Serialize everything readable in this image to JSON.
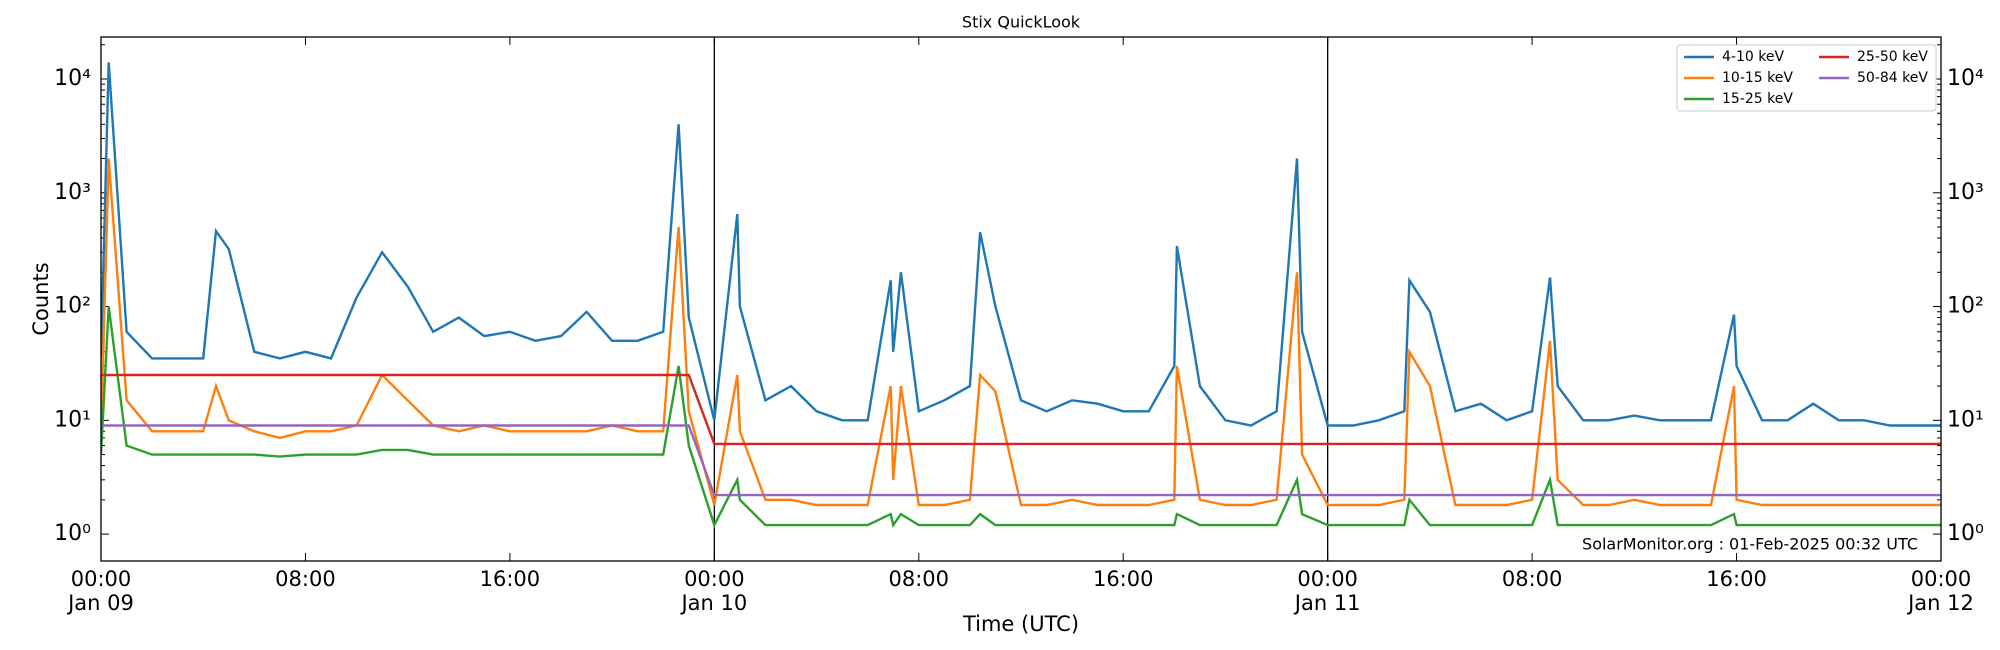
{
  "chart_data": {
    "type": "line",
    "title": "Stix QuickLook",
    "xlabel": "Time (UTC)",
    "ylabel": "Counts",
    "footnote": "SolarMonitor.org : 01-Feb-2025 00:32 UTC",
    "log_y": true,
    "day_separators": true,
    "legend_loc": "upper right",
    "xlim": [
      0,
      72
    ],
    "xticks": [
      {
        "value": 0,
        "label": "00:00\nJan 09"
      },
      {
        "value": 8,
        "label": "08:00"
      },
      {
        "value": 16,
        "label": "16:00"
      },
      {
        "value": 24,
        "label": "00:00\nJan 10"
      },
      {
        "value": 32,
        "label": "08:00"
      },
      {
        "value": 40,
        "label": "16:00"
      },
      {
        "value": 48,
        "label": "00:00\nJan 11"
      },
      {
        "value": 56,
        "label": "08:00"
      },
      {
        "value": 64,
        "label": "16:00"
      },
      {
        "value": 72,
        "label": "00:00\nJan 12"
      }
    ],
    "ylim": [
      0.58,
      23400
    ],
    "yticks": [
      {
        "value": 1,
        "label": "10⁰"
      },
      {
        "value": 10,
        "label": "10¹"
      },
      {
        "value": 100,
        "label": "10²"
      },
      {
        "value": 1000,
        "label": "10³"
      },
      {
        "value": 10000,
        "label": "10⁴"
      }
    ],
    "x": [
      0,
      0.3,
      1,
      2,
      3,
      4,
      4.5,
      5,
      6,
      7,
      8,
      9,
      10,
      11,
      12,
      13,
      14,
      15,
      16,
      17,
      18,
      19,
      20,
      21,
      22,
      22.6,
      23,
      24,
      24.9,
      25,
      26,
      27,
      28,
      29,
      30,
      30.9,
      31,
      31.3,
      32,
      33,
      34,
      34.4,
      35,
      36,
      37,
      38,
      39,
      40,
      41,
      42,
      42.1,
      43,
      44,
      45,
      46,
      46.8,
      47,
      48,
      49,
      50,
      51,
      51.2,
      52,
      53,
      54,
      55,
      56,
      56.7,
      57,
      58,
      59,
      60,
      61,
      62,
      63,
      63.9,
      64,
      65,
      66,
      67,
      68,
      69,
      70,
      71,
      72
    ],
    "series": [
      {
        "name": "4-10 keV",
        "color": "#1f77b4",
        "values": [
          35,
          14000,
          60,
          35,
          35,
          35,
          460,
          320,
          40,
          35,
          40,
          35,
          120,
          300,
          150,
          60,
          80,
          55,
          60,
          50,
          55,
          90,
          50,
          50,
          60,
          4000,
          80,
          10,
          650,
          100,
          15,
          20,
          12,
          10,
          10,
          170,
          40,
          200,
          12,
          15,
          20,
          450,
          100,
          15,
          12,
          15,
          14,
          12,
          12,
          30,
          340,
          20,
          10,
          9,
          12,
          2000,
          60,
          9,
          9,
          10,
          12,
          170,
          90,
          12,
          14,
          10,
          12,
          180,
          20,
          10,
          10,
          11,
          10,
          10,
          10,
          85,
          30,
          10,
          10,
          14,
          10,
          10,
          9,
          9,
          9
        ]
      },
      {
        "name": "10-15 keV",
        "color": "#ff7f0e",
        "values": [
          8,
          2000,
          15,
          8,
          8,
          8,
          20,
          10,
          8,
          7,
          8,
          8,
          9,
          25,
          15,
          9,
          8,
          9,
          8,
          8,
          8,
          8,
          9,
          8,
          8,
          500,
          12,
          1.8,
          25,
          8,
          2,
          2,
          1.8,
          1.8,
          1.8,
          20,
          3,
          20,
          1.8,
          1.8,
          2,
          25,
          18,
          1.8,
          1.8,
          2,
          1.8,
          1.8,
          1.8,
          2,
          30,
          2,
          1.8,
          1.8,
          2,
          200,
          5,
          1.8,
          1.8,
          1.8,
          2,
          40,
          20,
          1.8,
          1.8,
          1.8,
          2,
          50,
          3,
          1.8,
          1.8,
          2,
          1.8,
          1.8,
          1.8,
          20,
          2,
          1.8,
          1.8,
          1.8,
          1.8,
          1.8,
          1.8,
          1.8,
          1.8
        ]
      },
      {
        "name": "15-25 keV",
        "color": "#2ca02c",
        "values": [
          5,
          100,
          6,
          5,
          5,
          5,
          5,
          5,
          5,
          4.8,
          5,
          5,
          5,
          5.5,
          5.5,
          5,
          5,
          5,
          5,
          5,
          5,
          5,
          5,
          5,
          5,
          30,
          6,
          1.2,
          3,
          2,
          1.2,
          1.2,
          1.2,
          1.2,
          1.2,
          1.5,
          1.2,
          1.5,
          1.2,
          1.2,
          1.2,
          1.5,
          1.2,
          1.2,
          1.2,
          1.2,
          1.2,
          1.2,
          1.2,
          1.2,
          1.5,
          1.2,
          1.2,
          1.2,
          1.2,
          3,
          1.5,
          1.2,
          1.2,
          1.2,
          1.2,
          2,
          1.2,
          1.2,
          1.2,
          1.2,
          1.2,
          3,
          1.2,
          1.2,
          1.2,
          1.2,
          1.2,
          1.2,
          1.2,
          1.5,
          1.2,
          1.2,
          1.2,
          1.2,
          1.2,
          1.2,
          1.2,
          1.2,
          1.2
        ]
      },
      {
        "name": "25-50 keV",
        "color": "#d62728",
        "values": [
          25,
          25,
          25,
          25,
          25,
          25,
          25,
          25,
          25,
          25,
          25,
          25,
          25,
          25,
          25,
          25,
          25,
          25,
          25,
          25,
          25,
          25,
          25,
          25,
          25,
          25,
          25,
          6.2,
          6.2,
          6.2,
          6.2,
          6.2,
          6.2,
          6.2,
          6.2,
          6.2,
          6.2,
          6.2,
          6.2,
          6.2,
          6.2,
          6.2,
          6.2,
          6.2,
          6.2,
          6.2,
          6.2,
          6.2,
          6.2,
          6.2,
          6.2,
          6.2,
          6.2,
          6.2,
          6.2,
          6.2,
          6.2,
          6.2,
          6.2,
          6.2,
          6.2,
          6.2,
          6.2,
          6.2,
          6.2,
          6.2,
          6.2,
          6.2,
          6.2,
          6.2,
          6.2,
          6.2,
          6.2,
          6.2,
          6.2,
          6.2,
          6.2,
          6.2,
          6.2,
          6.2,
          6.2,
          6.2,
          6.2,
          6.2,
          6.2
        ]
      },
      {
        "name": "50-84 keV",
        "color": "#9467bd",
        "values": [
          9,
          9,
          9,
          9,
          9,
          9,
          9,
          9,
          9,
          9,
          9,
          9,
          9,
          9,
          9,
          9,
          9,
          9,
          9,
          9,
          9,
          9,
          9,
          9,
          9,
          9,
          9,
          2.2,
          2.2,
          2.2,
          2.2,
          2.2,
          2.2,
          2.2,
          2.2,
          2.2,
          2.2,
          2.2,
          2.2,
          2.2,
          2.2,
          2.2,
          2.2,
          2.2,
          2.2,
          2.2,
          2.2,
          2.2,
          2.2,
          2.2,
          2.2,
          2.2,
          2.2,
          2.2,
          2.2,
          2.2,
          2.2,
          2.2,
          2.2,
          2.2,
          2.2,
          2.2,
          2.2,
          2.2,
          2.2,
          2.2,
          2.2,
          2.2,
          2.2,
          2.2,
          2.2,
          2.2,
          2.2,
          2.2,
          2.2,
          2.2,
          2.2,
          2.2,
          2.2,
          2.2,
          2.2,
          2.2,
          2.2,
          2.2,
          2.2
        ]
      }
    ]
  }
}
